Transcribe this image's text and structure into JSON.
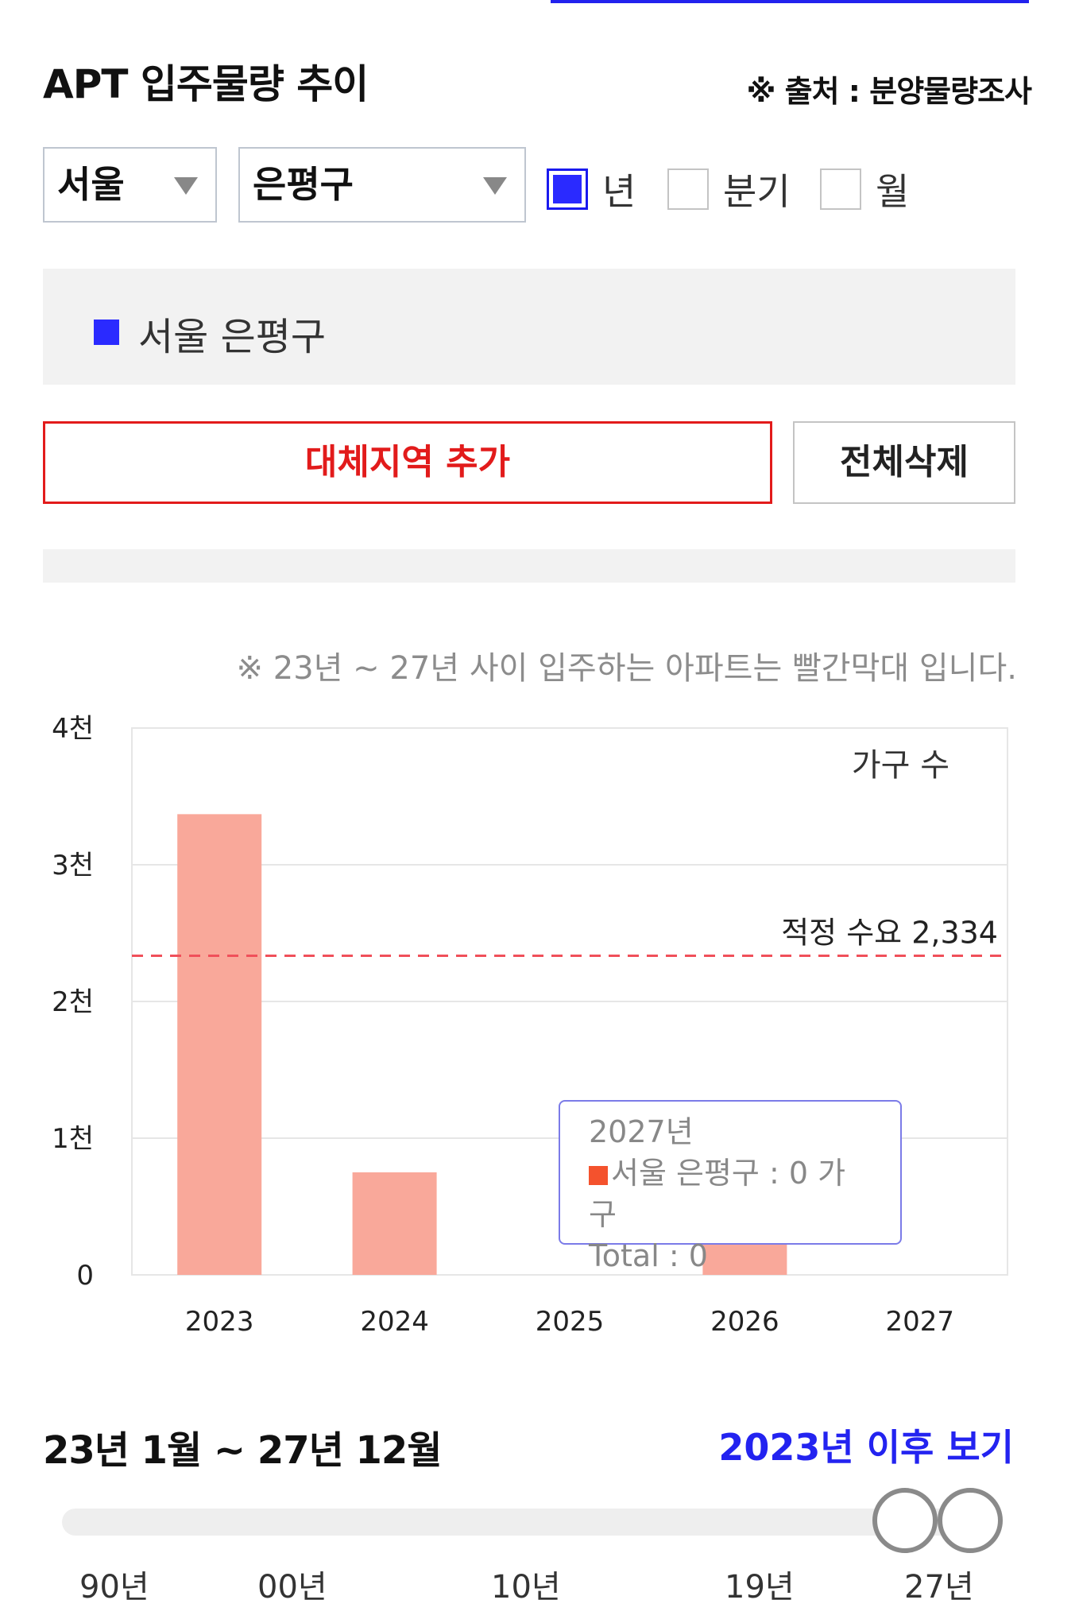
{
  "header": {
    "title": "APT 입주물량 추이",
    "source": "※ 출처 : 분양물량조사"
  },
  "filters": {
    "city": "서울",
    "district": "은평구",
    "period_options": [
      {
        "label": "년",
        "checked": true
      },
      {
        "label": "분기",
        "checked": false
      },
      {
        "label": "월",
        "checked": false
      }
    ]
  },
  "legend": {
    "region_label": "서울 은평구",
    "color": "#2a2aff"
  },
  "buttons": {
    "add_region": "대체지역 추가",
    "delete_all": "전체삭제"
  },
  "note": "※ 23년 ~ 27년 사이 입주하는 아파트는 빨간막대 입니다.",
  "chart_data": {
    "type": "bar",
    "categories": [
      "2023",
      "2024",
      "2025",
      "2026",
      "2027"
    ],
    "series": [
      {
        "name": "서울 은평구",
        "values": [
          3370,
          750,
          0,
          250,
          0
        ],
        "color": "#f9a89a"
      }
    ],
    "ylim": [
      0,
      4000
    ],
    "yticks": [
      0,
      1000,
      2000,
      3000,
      4000
    ],
    "ytick_labels": [
      "0",
      "1천",
      "2천",
      "3천",
      "4천"
    ],
    "ylabel": "가구 수",
    "reference_line": {
      "label": "적정 수요 2,334",
      "value": 2334,
      "color": "#f0505a"
    },
    "grid": true
  },
  "tooltip": {
    "title": "2027년",
    "line": "서울 은평구 : 0 가구",
    "total": "Total : 0"
  },
  "range": {
    "label": "23년 1월 ~ 27년 12월",
    "link": "2023년 이후 보기",
    "ticks": [
      "90년",
      "00년",
      "10년",
      "19년",
      "27년"
    ]
  }
}
